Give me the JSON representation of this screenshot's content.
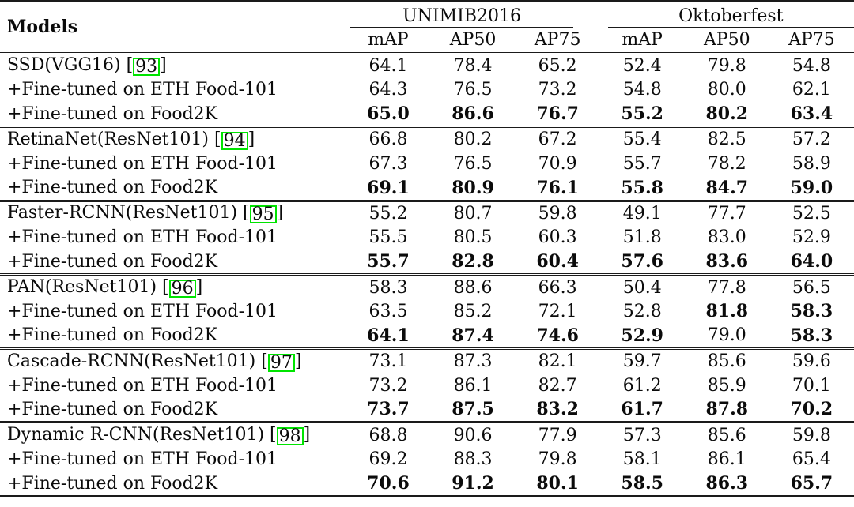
{
  "colors": {
    "citation_box_green": "#00e400",
    "rule_black": "#1a1a1a",
    "background": "#ffffff"
  },
  "table": {
    "models_header": "Models",
    "groups": [
      {
        "label": "UNIMIB2016",
        "columns": [
          "mAP",
          "AP50",
          "AP75"
        ]
      },
      {
        "label": "Oktoberfest",
        "columns": [
          "mAP",
          "AP50",
          "AP75"
        ]
      }
    ],
    "sections": [
      {
        "rows": [
          {
            "model": "SSD(VGG16)",
            "citation": "93",
            "values": [
              "64.1",
              "78.4",
              "65.2",
              "52.4",
              "79.8",
              "54.8"
            ],
            "bold": [
              false,
              false,
              false,
              false,
              false,
              false
            ]
          },
          {
            "model": "+Fine-tuned on ETH Food-101",
            "citation": null,
            "values": [
              "64.3",
              "76.5",
              "73.2",
              "54.8",
              "80.0",
              "62.1"
            ],
            "bold": [
              false,
              false,
              false,
              false,
              false,
              false
            ]
          },
          {
            "model": "+Fine-tuned on Food2K",
            "citation": null,
            "values": [
              "65.0",
              "86.6",
              "76.7",
              "55.2",
              "80.2",
              "63.4"
            ],
            "bold": [
              true,
              true,
              true,
              true,
              true,
              true
            ]
          }
        ]
      },
      {
        "rows": [
          {
            "model": "RetinaNet(ResNet101)",
            "citation": "94",
            "values": [
              "66.8",
              "80.2",
              "67.2",
              "55.4",
              "82.5",
              "57.2"
            ],
            "bold": [
              false,
              false,
              false,
              false,
              false,
              false
            ]
          },
          {
            "model": "+Fine-tuned on ETH Food-101",
            "citation": null,
            "values": [
              "67.3",
              "76.5",
              "70.9",
              "55.7",
              "78.2",
              "58.9"
            ],
            "bold": [
              false,
              false,
              false,
              false,
              false,
              false
            ]
          },
          {
            "model": "+Fine-tuned on Food2K",
            "citation": null,
            "values": [
              "69.1",
              "80.9",
              "76.1",
              "55.8",
              "84.7",
              "59.0"
            ],
            "bold": [
              true,
              true,
              true,
              true,
              true,
              true
            ]
          }
        ]
      },
      {
        "rows": [
          {
            "model": "Faster-RCNN(ResNet101)",
            "citation": "95",
            "values": [
              "55.2",
              "80.7",
              "59.8",
              "49.1",
              "77.7",
              "52.5"
            ],
            "bold": [
              false,
              false,
              false,
              false,
              false,
              false
            ]
          },
          {
            "model": "+Fine-tuned on ETH Food-101",
            "citation": null,
            "values": [
              "55.5",
              "80.5",
              "60.3",
              "51.8",
              "83.0",
              "52.9"
            ],
            "bold": [
              false,
              false,
              false,
              false,
              false,
              false
            ]
          },
          {
            "model": "+Fine-tuned on Food2K",
            "citation": null,
            "values": [
              "55.7",
              "82.8",
              "60.4",
              "57.6",
              "83.6",
              "64.0"
            ],
            "bold": [
              true,
              true,
              true,
              true,
              true,
              true
            ]
          }
        ]
      },
      {
        "rows": [
          {
            "model": "PAN(ResNet101)",
            "citation": "96",
            "values": [
              "58.3",
              "88.6",
              "66.3",
              "50.4",
              "77.8",
              "56.5"
            ],
            "bold": [
              false,
              false,
              false,
              false,
              false,
              false
            ]
          },
          {
            "model": "+Fine-tuned on ETH Food-101",
            "citation": null,
            "values": [
              "63.5",
              "85.2",
              "72.1",
              "52.8",
              "81.8",
              "58.3"
            ],
            "bold": [
              false,
              false,
              false,
              false,
              true,
              true
            ]
          },
          {
            "model": "+Fine-tuned on Food2K",
            "citation": null,
            "values": [
              "64.1",
              "87.4",
              "74.6",
              "52.9",
              "79.0",
              "58.3"
            ],
            "bold": [
              true,
              true,
              true,
              true,
              false,
              true
            ]
          }
        ]
      },
      {
        "rows": [
          {
            "model": "Cascade-RCNN(ResNet101)",
            "citation": "97",
            "values": [
              "73.1",
              "87.3",
              "82.1",
              "59.7",
              "85.6",
              "59.6"
            ],
            "bold": [
              false,
              false,
              false,
              false,
              false,
              false
            ]
          },
          {
            "model": "+Fine-tuned on ETH Food-101",
            "citation": null,
            "values": [
              "73.2",
              "86.1",
              "82.7",
              "61.2",
              "85.9",
              "70.1"
            ],
            "bold": [
              false,
              false,
              false,
              false,
              false,
              false
            ]
          },
          {
            "model": "+Fine-tuned on Food2K",
            "citation": null,
            "values": [
              "73.7",
              "87.5",
              "83.2",
              "61.7",
              "87.8",
              "70.2"
            ],
            "bold": [
              true,
              true,
              true,
              true,
              true,
              true
            ]
          }
        ]
      },
      {
        "rows": [
          {
            "model": "Dynamic R-CNN(ResNet101)",
            "citation": "98",
            "values": [
              "68.8",
              "90.6",
              "77.9",
              "57.3",
              "85.6",
              "59.8"
            ],
            "bold": [
              false,
              false,
              false,
              false,
              false,
              false
            ]
          },
          {
            "model": "+Fine-tuned on ETH Food-101",
            "citation": null,
            "values": [
              "69.2",
              "88.3",
              "79.8",
              "58.1",
              "86.1",
              "65.4"
            ],
            "bold": [
              false,
              false,
              false,
              false,
              false,
              false
            ]
          },
          {
            "model": "+Fine-tuned on Food2K",
            "citation": null,
            "values": [
              "70.6",
              "91.2",
              "80.1",
              "58.5",
              "86.3",
              "65.7"
            ],
            "bold": [
              true,
              true,
              true,
              true,
              true,
              true
            ]
          }
        ]
      }
    ]
  }
}
